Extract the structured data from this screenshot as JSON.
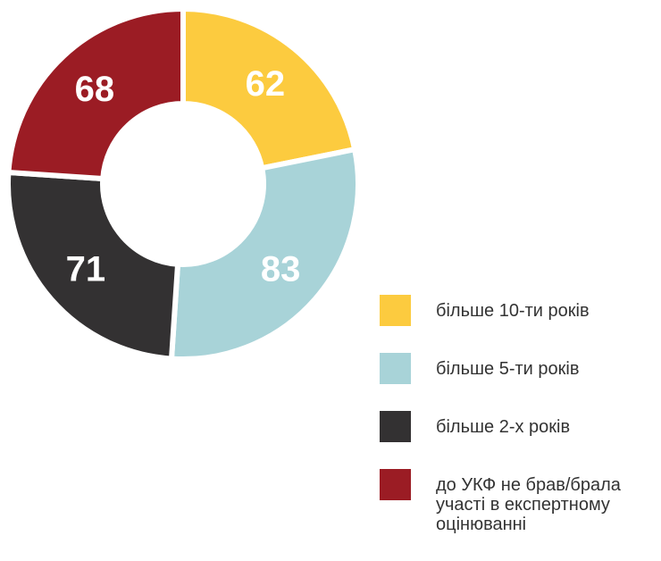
{
  "chart_data": {
    "type": "donut",
    "categories": [
      "більше 10-ти років",
      "більше 5-ти років",
      "більше 2-х років",
      "до УКФ не брав/брала участі в експертному оцінюванні"
    ],
    "values": [
      62,
      83,
      71,
      68
    ],
    "colors": [
      "#fccb3f",
      "#a8d3d8",
      "#333132",
      "#9b1c24"
    ],
    "legend": "bottom-right"
  }
}
